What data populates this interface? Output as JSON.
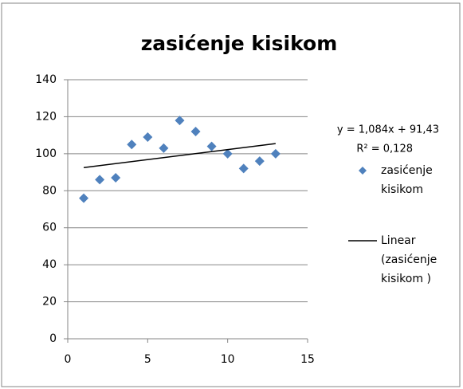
{
  "chart_data": {
    "type": "scatter",
    "title": "zasićenje kisikom",
    "annotations": [
      "y = 1,084x + 91,43",
      "R² = 0,128"
    ],
    "series": [
      {
        "name": "zasićenje kisikom",
        "color": "#4f81bd",
        "x": [
          1,
          2,
          3,
          4,
          5,
          6,
          7,
          8,
          9,
          10,
          11,
          12,
          13
        ],
        "values": [
          76,
          86,
          87,
          105,
          109,
          103,
          118,
          112,
          104,
          100,
          92,
          96,
          100
        ]
      },
      {
        "name": "Linear (zasićenje kisikom )",
        "color": "#000000",
        "line": true,
        "x": [
          1,
          13
        ],
        "values": [
          92.5,
          105.5
        ]
      }
    ],
    "xlim": [
      0,
      15
    ],
    "xticks": [
      0,
      5,
      10,
      15
    ],
    "ylim": [
      0,
      140
    ],
    "yticks": [
      0,
      20,
      40,
      60,
      80,
      100,
      120,
      140
    ],
    "grid": true
  }
}
